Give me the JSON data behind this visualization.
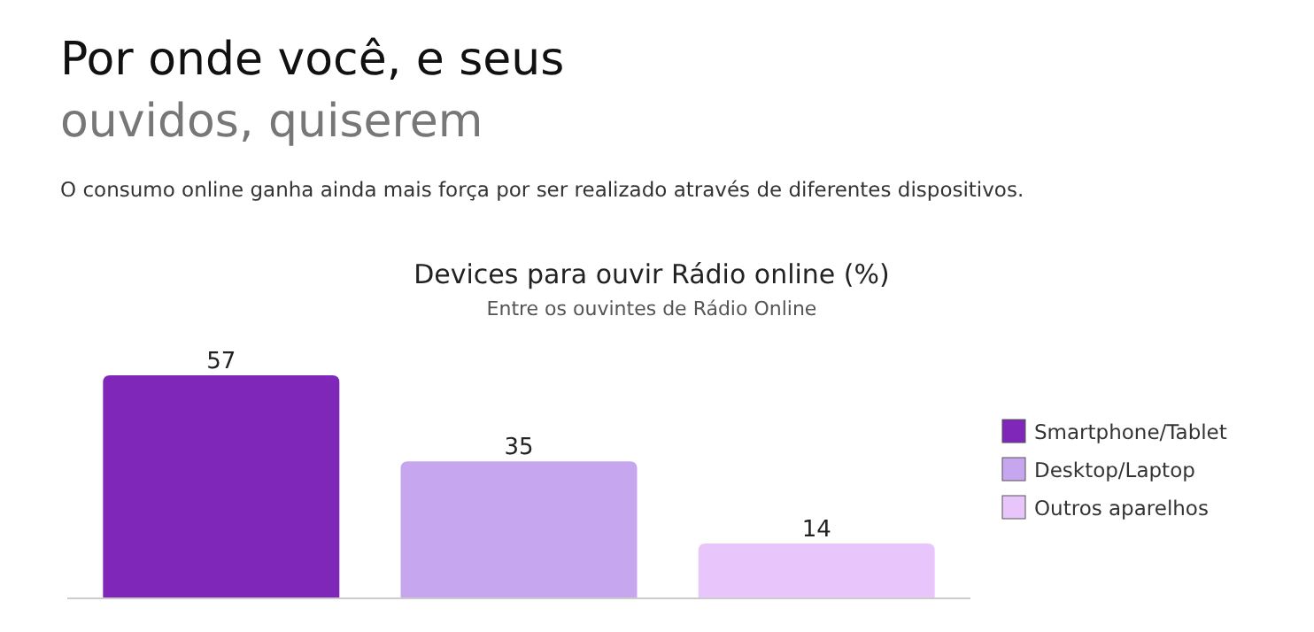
{
  "chart_data": {
    "type": "bar",
    "title": "Devices para ouvir Rádio online (%)",
    "subtitle": "Entre os ouvintes de Rádio Online",
    "annotations": [
      "Por onde você, e seus",
      "ouvidos, quiserem",
      "O consumo online ganha ainda mais força por ser realizado através de diferentes dispositivos."
    ],
    "categories": [
      null,
      null,
      null
    ],
    "stacked": true,
    "series": [
      {
        "name": "Smartphone/Tablet",
        "color": "#7e27b9",
        "values": [
          57,
          null,
          null
        ]
      },
      {
        "name": "Desktop/Laptop",
        "color": "#c5a6ef",
        "values": [
          null,
          35,
          null
        ]
      },
      {
        "name": "Outros aparelhos",
        "color": "#e8c5fb",
        "values": [
          null,
          null,
          14
        ]
      }
    ],
    "data_labels": true,
    "legend": "right"
  }
}
